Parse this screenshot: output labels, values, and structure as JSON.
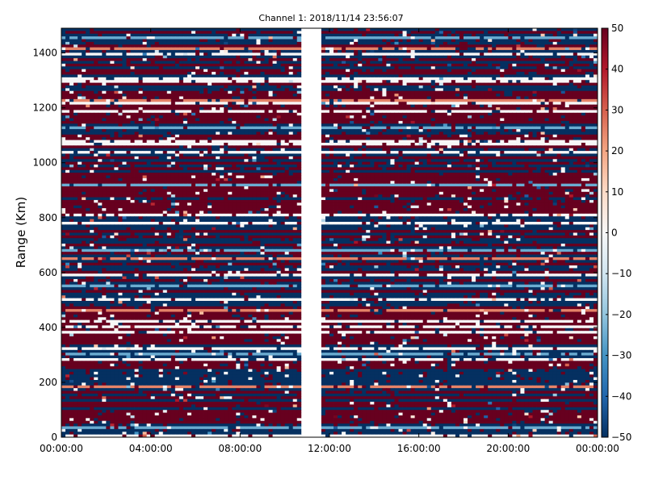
{
  "chart_data": {
    "type": "heatmap",
    "title": "Channel 1: 2018/11/14 23:56:07",
    "xlabel": "",
    "ylabel": "Range (Km)",
    "x_tick_labels": [
      "00:00:00",
      "04:00:00",
      "08:00:00",
      "12:00:00",
      "16:00:00",
      "20:00:00",
      "00:00:00"
    ],
    "x_range_hours": [
      0,
      24
    ],
    "y_ticks": [
      0,
      200,
      400,
      600,
      800,
      1000,
      1200,
      1400
    ],
    "y_range": [
      0,
      1490
    ],
    "colorbar": {
      "ticks": [
        50,
        40,
        30,
        20,
        10,
        0,
        -10,
        -20,
        -30,
        -40,
        -50
      ],
      "labels": [
        "50",
        "40",
        "30",
        "20",
        "10",
        "0",
        "−10",
        "−20",
        "−30",
        "−40",
        "−50"
      ],
      "range": [
        -50,
        50
      ],
      "colormap": "RdBu_r"
    },
    "data_gap_hours": [
      10.7,
      11.6
    ],
    "colors": {
      "low": "#053061",
      "mid": "#f7f7f7",
      "high": "#67001f"
    }
  }
}
